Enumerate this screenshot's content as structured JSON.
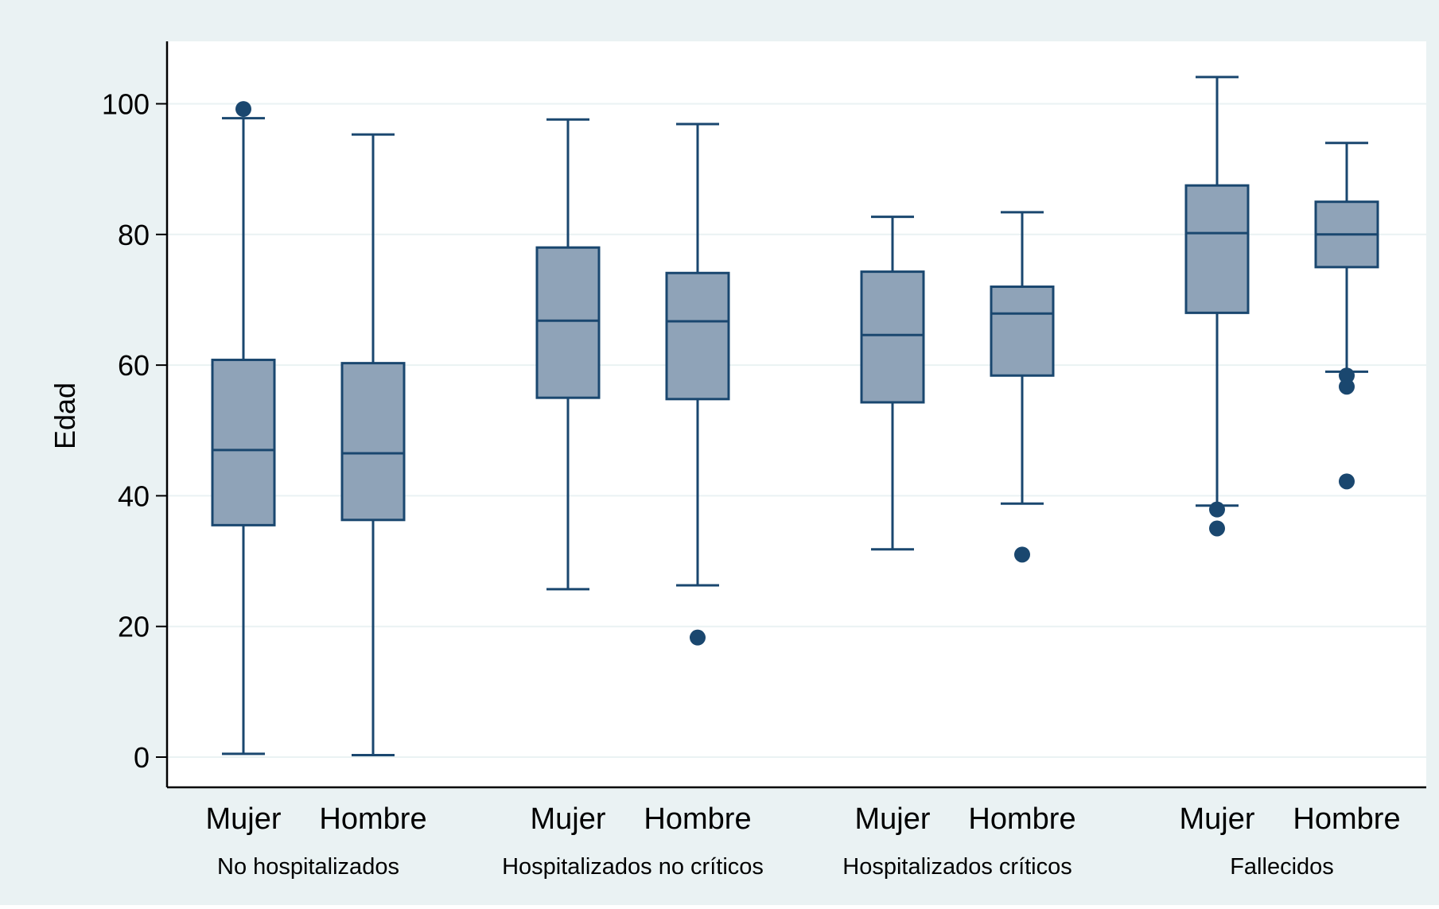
{
  "chart_data": {
    "type": "box",
    "ylabel": "Edad",
    "ylim": [
      0,
      105
    ],
    "yticks": [
      0,
      20,
      40,
      60,
      80,
      100
    ],
    "grid": true,
    "colors": {
      "outer_bg": "#eaf2f3",
      "plot_bg": "#ffffff",
      "box_fill": "#8fa3b8",
      "box_stroke": "#1a476f",
      "grid": "#eaf2f3",
      "axis": "#000000"
    },
    "groups": [
      {
        "name": "No hospitalizados",
        "boxes": [
          {
            "label": "Mujer",
            "whisker_low": 0.5,
            "q1": 35.5,
            "median": 47,
            "q3": 60.8,
            "whisker_high": 97.8,
            "outliers": [
              99.2
            ]
          },
          {
            "label": "Hombre",
            "whisker_low": 0.3,
            "q1": 36.3,
            "median": 46.5,
            "q3": 60.3,
            "whisker_high": 95.3,
            "outliers": []
          }
        ]
      },
      {
        "name": "Hospitalizados no críticos",
        "boxes": [
          {
            "label": "Mujer",
            "whisker_low": 25.7,
            "q1": 55,
            "median": 66.8,
            "q3": 78,
            "whisker_high": 97.6,
            "outliers": []
          },
          {
            "label": "Hombre",
            "whisker_low": 26.3,
            "q1": 54.8,
            "median": 66.7,
            "q3": 74.1,
            "whisker_high": 96.9,
            "outliers": [
              18.3
            ]
          }
        ]
      },
      {
        "name": "Hospitalizados críticos",
        "boxes": [
          {
            "label": "Mujer",
            "whisker_low": 31.8,
            "q1": 54.3,
            "median": 64.6,
            "q3": 74.3,
            "whisker_high": 82.7,
            "outliers": []
          },
          {
            "label": "Hombre",
            "whisker_low": 38.8,
            "q1": 58.4,
            "median": 67.9,
            "q3": 72,
            "whisker_high": 83.4,
            "outliers": [
              31
            ]
          }
        ]
      },
      {
        "name": "Fallecidos",
        "boxes": [
          {
            "label": "Mujer",
            "whisker_low": 38.5,
            "q1": 68,
            "median": 80.2,
            "q3": 87.5,
            "whisker_high": 104.1,
            "outliers": [
              37.9,
              35
            ]
          },
          {
            "label": "Hombre",
            "whisker_low": 59,
            "q1": 75,
            "median": 80,
            "q3": 85,
            "whisker_high": 94,
            "outliers": [
              58.4,
              56.7,
              42.2
            ]
          }
        ]
      }
    ]
  }
}
